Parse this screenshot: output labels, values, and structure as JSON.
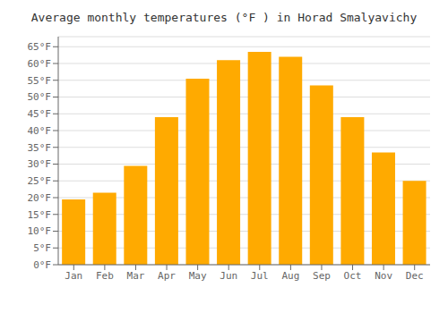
{
  "chart_data": {
    "type": "bar",
    "title": "Average monthly temperatures (°F ) in Horad Smalyavichy",
    "categories": [
      "Jan",
      "Feb",
      "Mar",
      "Apr",
      "May",
      "Jun",
      "Jul",
      "Aug",
      "Sep",
      "Oct",
      "Nov",
      "Dec"
    ],
    "values": [
      19.5,
      21.5,
      29.5,
      44.0,
      55.5,
      61.0,
      63.5,
      62.0,
      53.5,
      44.0,
      33.5,
      25.0
    ],
    "color": "#FFAA00",
    "ylim": [
      0,
      68
    ],
    "yticks": [
      {
        "value": 0,
        "label": "0°F"
      },
      {
        "value": 5,
        "label": "5°F"
      },
      {
        "value": 10,
        "label": "10°F"
      },
      {
        "value": 15,
        "label": "15°F"
      },
      {
        "value": 20,
        "label": "20°F"
      },
      {
        "value": 25,
        "label": "25°F"
      },
      {
        "value": 30,
        "label": "30°F"
      },
      {
        "value": 35,
        "label": "35°F"
      },
      {
        "value": 40,
        "label": "40°F"
      },
      {
        "value": 45,
        "label": "45°F"
      },
      {
        "value": 50,
        "label": "50°F"
      },
      {
        "value": 55,
        "label": "55°F"
      },
      {
        "value": 60,
        "label": "60°F"
      },
      {
        "value": 65,
        "label": "65°F"
      }
    ],
    "grid": true
  }
}
